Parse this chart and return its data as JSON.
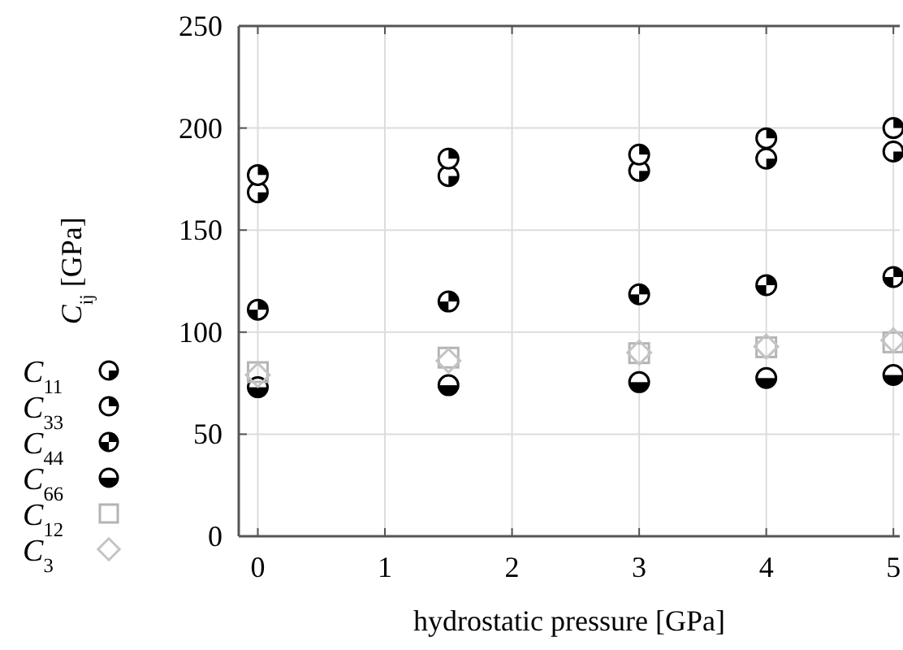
{
  "chart_data": {
    "type": "scatter",
    "xlabel": "hydrostatic pressure [GPa]",
    "ylabel": "C$_{ij}$ [GPa]",
    "x": [
      0,
      1.5,
      3,
      4,
      5
    ],
    "xlim": [
      -0.15,
      5.05
    ],
    "xticks": [
      0,
      1,
      2,
      3,
      4,
      5
    ],
    "ylim": [
      0,
      250
    ],
    "yticks": [
      0,
      50,
      100,
      150,
      200,
      250
    ],
    "grid": true,
    "legend": "left",
    "series": [
      {
        "name": "C$_{11}$",
        "color": "#000000",
        "marker": "circle",
        "values": [
          168.5,
          176.5,
          179,
          185,
          188.5
        ]
      },
      {
        "name": "C$_{33}$",
        "color": "#000000",
        "marker": "circle",
        "values": [
          177,
          185,
          187,
          195,
          200
        ]
      },
      {
        "name": "C$_{44}$",
        "color": "#000000",
        "marker": "circle",
        "values": [
          111,
          115,
          118.5,
          123,
          127
        ]
      },
      {
        "name": "C$_{66}$",
        "color": "#000000",
        "marker": "circle",
        "values": [
          73,
          74,
          75.5,
          77.5,
          79
        ]
      },
      {
        "name": "C$_{12}$",
        "color": "#b4b4b4",
        "marker": "square",
        "values": [
          80.4,
          87.5,
          89.7,
          92.6,
          95
        ]
      },
      {
        "name": "C$_{3}$",
        "color": "#c4c4c4",
        "marker": "diamond",
        "values": [
          79,
          86,
          90,
          93,
          96
        ]
      }
    ]
  }
}
